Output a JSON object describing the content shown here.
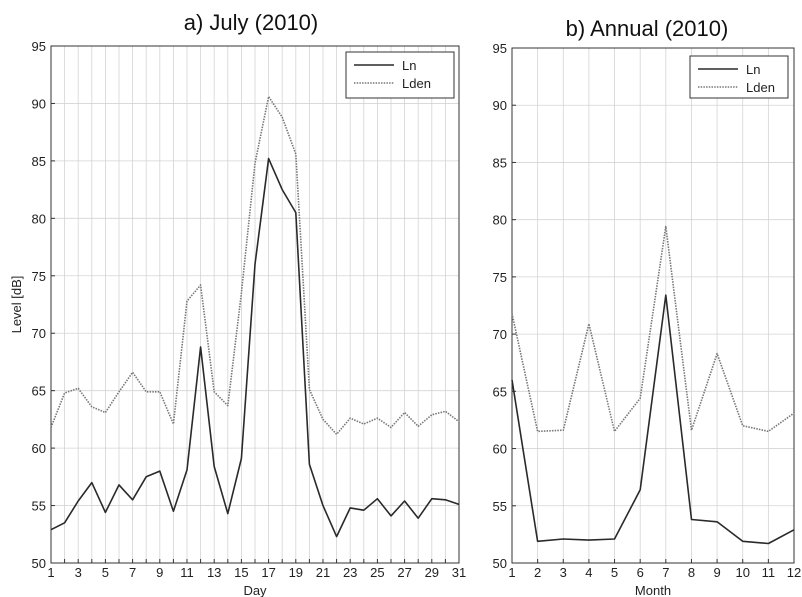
{
  "chart_data": [
    {
      "type": "line",
      "title": "a) July (2010)",
      "xlabel": "Day",
      "ylabel": "Level [dB]",
      "xlim": [
        1,
        31
      ],
      "ylim": [
        50,
        95
      ],
      "x_ticks": [
        1,
        3,
        5,
        7,
        9,
        11,
        13,
        15,
        17,
        19,
        21,
        23,
        25,
        27,
        29,
        31
      ],
      "y_ticks": [
        50,
        55,
        60,
        65,
        70,
        75,
        80,
        85,
        90,
        95
      ],
      "grid": true,
      "legend_position": "top-right",
      "x": [
        1,
        2,
        3,
        4,
        5,
        6,
        7,
        8,
        9,
        10,
        11,
        12,
        13,
        14,
        15,
        16,
        17,
        18,
        19,
        20,
        21,
        22,
        23,
        24,
        25,
        26,
        27,
        28,
        29,
        30,
        31
      ],
      "series": [
        {
          "name": "Ln",
          "style": "solid",
          "color": "#2a2a2a",
          "values": [
            52.9,
            53.5,
            55.4,
            57.0,
            54.4,
            56.8,
            55.5,
            57.5,
            58.0,
            54.5,
            58.1,
            68.8,
            58.4,
            54.3,
            59.1,
            76.0,
            85.2,
            82.5,
            80.5,
            58.6,
            55.0,
            52.3,
            54.8,
            54.6,
            55.6,
            54.1,
            55.4,
            53.9,
            55.6,
            55.5,
            55.1
          ]
        },
        {
          "name": "Lden",
          "style": "dotted",
          "color": "#777777",
          "values": [
            61.8,
            64.8,
            65.2,
            63.6,
            63.1,
            64.9,
            66.6,
            64.9,
            64.9,
            62.1,
            72.8,
            74.2,
            64.9,
            63.7,
            73.5,
            84.8,
            90.6,
            88.8,
            85.6,
            65.1,
            62.5,
            61.2,
            62.6,
            62.1,
            62.6,
            61.8,
            63.1,
            61.9,
            62.9,
            63.2,
            62.3
          ]
        }
      ]
    },
    {
      "type": "line",
      "title": "b) Annual (2010)",
      "xlabel": "Month",
      "ylabel": "",
      "xlim": [
        1,
        12
      ],
      "ylim": [
        50,
        95
      ],
      "x_ticks": [
        1,
        2,
        3,
        4,
        5,
        6,
        7,
        8,
        9,
        10,
        11,
        12
      ],
      "y_ticks": [
        50,
        55,
        60,
        65,
        70,
        75,
        80,
        85,
        90,
        95
      ],
      "grid": true,
      "legend_position": "top-right",
      "x": [
        1,
        2,
        3,
        4,
        5,
        6,
        7,
        8,
        9,
        10,
        11,
        12
      ],
      "series": [
        {
          "name": "Ln",
          "style": "solid",
          "color": "#2a2a2a",
          "values": [
            66.0,
            51.9,
            52.1,
            52.0,
            52.1,
            56.4,
            73.4,
            53.8,
            53.6,
            51.9,
            51.7,
            52.9
          ]
        },
        {
          "name": "Lden",
          "style": "dotted",
          "color": "#777777",
          "values": [
            71.8,
            61.5,
            61.6,
            70.9,
            61.5,
            64.4,
            79.4,
            61.6,
            68.3,
            62.0,
            61.5,
            63.1
          ]
        }
      ]
    }
  ]
}
